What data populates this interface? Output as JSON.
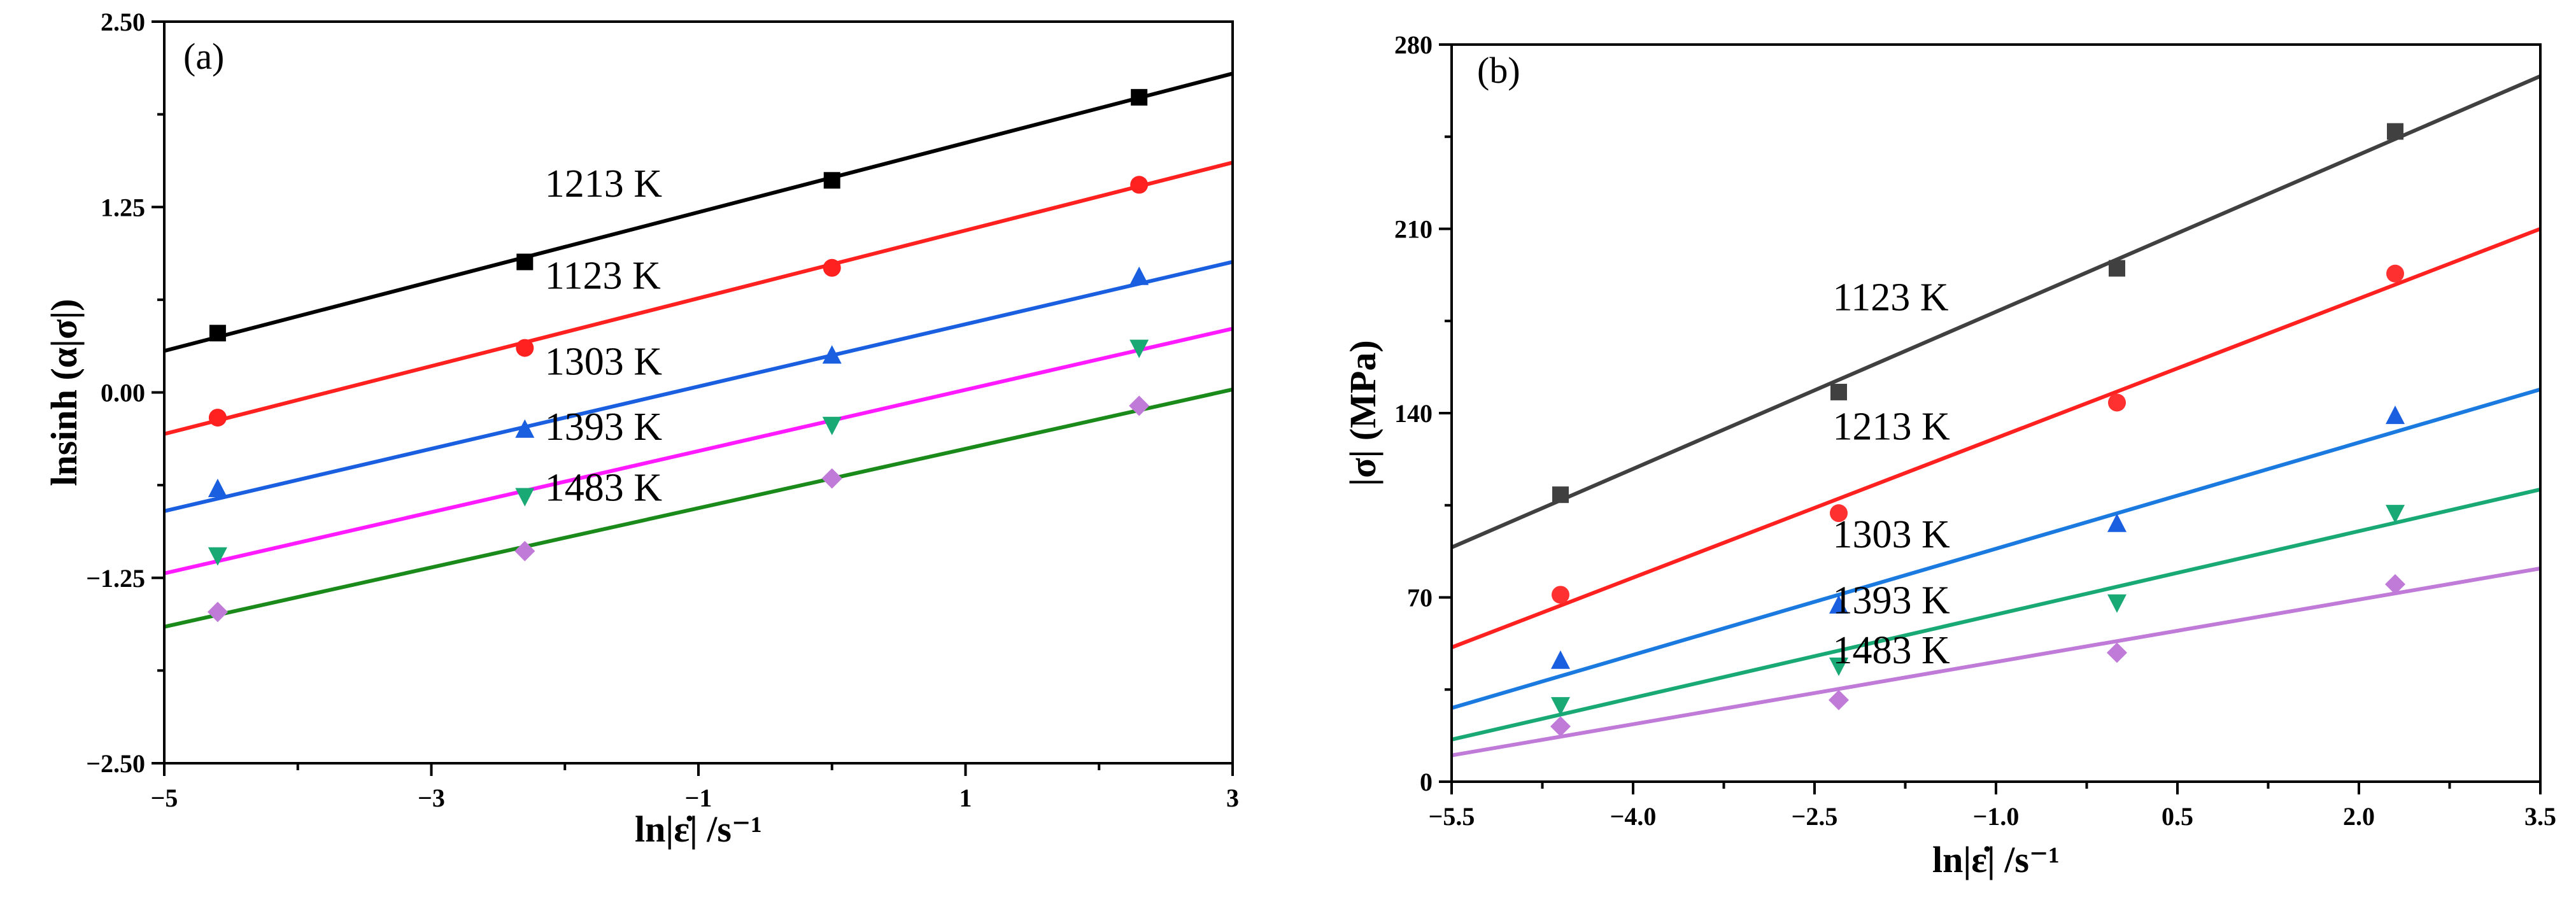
{
  "chart_data": [
    {
      "type": "scatter",
      "panel_label": "(a)",
      "xlabel": "ln|ε̇| /s⁻¹",
      "ylabel": "lnsinh (α|σ|)",
      "xlim": [
        -5,
        3
      ],
      "ylim": [
        -2.5,
        2.5
      ],
      "xticks": [
        -5,
        -3,
        -1,
        1,
        3
      ],
      "xtick_labels": [
        "−5",
        "−3",
        "−1",
        "1",
        "3"
      ],
      "yticks": [
        -2.5,
        -1.25,
        0,
        1.25,
        2.5
      ],
      "ytick_labels": [
        "−2.50",
        "−1.25",
        "0.00",
        "1.25",
        "2.50"
      ],
      "grid": false,
      "series": [
        {
          "name": "1213 K",
          "color": "#000000",
          "marker": "square",
          "x": [
            -4.6,
            -2.3,
            0,
            2.3
          ],
          "y": [
            0.4,
            0.88,
            1.43,
            1.99
          ],
          "fit": [
            [
              -5,
              0.28
            ],
            [
              3,
              2.15
            ]
          ]
        },
        {
          "name": "1123 K",
          "color": "#ff2020",
          "marker": "circle",
          "x": [
            -4.6,
            -2.3,
            0,
            2.3
          ],
          "y": [
            -0.17,
            0.3,
            0.84,
            1.4
          ],
          "fit": [
            [
              -5,
              -0.28
            ],
            [
              3,
              1.55
            ]
          ]
        },
        {
          "name": "1303 K",
          "color": "#1a5fe0",
          "marker": "triangle-up",
          "x": [
            -4.6,
            -2.3,
            0,
            2.3
          ],
          "y": [
            -0.65,
            -0.25,
            0.25,
            0.78
          ],
          "fit": [
            [
              -5,
              -0.8
            ],
            [
              3,
              0.88
            ]
          ]
        },
        {
          "name": "1393 K",
          "color": "#19a974",
          "marker": "triangle-down",
          "x": [
            -4.6,
            -2.3,
            0,
            2.3
          ],
          "y": [
            -1.1,
            -0.7,
            -0.22,
            0.3
          ],
          "fit": [
            [
              -5,
              -1.22
            ],
            [
              3,
              0.43
            ]
          ],
          "fit_color": "#ff1aff"
        },
        {
          "name": "1483 K",
          "color": "#c07ad8",
          "marker": "diamond",
          "x": [
            -4.6,
            -2.3,
            0,
            2.3
          ],
          "y": [
            -1.48,
            -1.07,
            -0.58,
            -0.09
          ],
          "fit": [
            [
              -5,
              -1.58
            ],
            [
              3,
              0.02
            ]
          ],
          "fit_color": "#1a8a1a"
        }
      ],
      "annotations": [
        {
          "text": "1213 K",
          "x": -2.15,
          "y": 1.32
        },
        {
          "text": "1123 K",
          "x": -2.15,
          "y": 0.7
        },
        {
          "text": "1303 K",
          "x": -2.15,
          "y": 0.12
        },
        {
          "text": "1393 K",
          "x": -2.15,
          "y": -0.32
        },
        {
          "text": "1483 K",
          "x": -2.15,
          "y": -0.73
        }
      ]
    },
    {
      "type": "scatter",
      "panel_label": "(b)",
      "xlabel": "ln|ε̇| /s⁻¹",
      "ylabel": "|σ| (MPa)",
      "xlim": [
        -5.5,
        3.5
      ],
      "ylim": [
        0,
        280
      ],
      "xticks": [
        -5.5,
        -4.0,
        -2.5,
        -1.0,
        0.5,
        2.0,
        3.5
      ],
      "xtick_labels": [
        "−5.5",
        "−4.0",
        "−2.5",
        "−1.0",
        "0.5",
        "2.0",
        "3.5"
      ],
      "yticks": [
        0,
        70,
        140,
        210,
        280
      ],
      "ytick_labels": [
        "0",
        "70",
        "140",
        "210",
        "280"
      ],
      "grid": false,
      "series": [
        {
          "name": "1123 K",
          "color": "#404040",
          "marker": "square",
          "x": [
            -4.6,
            -2.3,
            0,
            2.3
          ],
          "y": [
            109,
            148,
            195,
            247
          ],
          "fit": [
            [
              -5.5,
              89
            ],
            [
              3.5,
              268
            ]
          ]
        },
        {
          "name": "1213 K",
          "color": "#ff3030",
          "marker": "circle",
          "x": [
            -4.6,
            -2.3,
            0,
            2.3
          ],
          "y": [
            71,
            102,
            144,
            193
          ],
          "fit": [
            [
              -5.5,
              51
            ],
            [
              3.5,
              210
            ]
          ],
          "fit_color": "#ff2020"
        },
        {
          "name": "1303 K",
          "color": "#1a5fe0",
          "marker": "triangle-up",
          "x": [
            -4.6,
            -2.3,
            0,
            2.3
          ],
          "y": [
            46,
            67,
            98,
            139
          ],
          "fit": [
            [
              -5.5,
              28
            ],
            [
              3.5,
              149
            ]
          ],
          "fit_color": "#1a7ae0"
        },
        {
          "name": "1393 K",
          "color": "#19a974",
          "marker": "triangle-down",
          "x": [
            -4.6,
            -2.3,
            0,
            2.3
          ],
          "y": [
            29,
            44,
            68,
            102
          ],
          "fit": [
            [
              -5.5,
              16
            ],
            [
              3.5,
              111
            ]
          ]
        },
        {
          "name": "1483 K",
          "color": "#c07ad8",
          "marker": "diamond",
          "x": [
            -4.6,
            -2.3,
            0,
            2.3
          ],
          "y": [
            21,
            31,
            49,
            75
          ],
          "fit": [
            [
              -5.5,
              10
            ],
            [
              3.5,
              81
            ]
          ]
        }
      ],
      "annotations": [
        {
          "text": "1123 K",
          "x": -2.35,
          "y": 179
        },
        {
          "text": "1213 K",
          "x": -2.35,
          "y": 130
        },
        {
          "text": "1303 K",
          "x": -2.35,
          "y": 89
        },
        {
          "text": "1393 K",
          "x": -2.35,
          "y": 64
        },
        {
          "text": "1483 K",
          "x": -2.35,
          "y": 45
        }
      ]
    }
  ]
}
